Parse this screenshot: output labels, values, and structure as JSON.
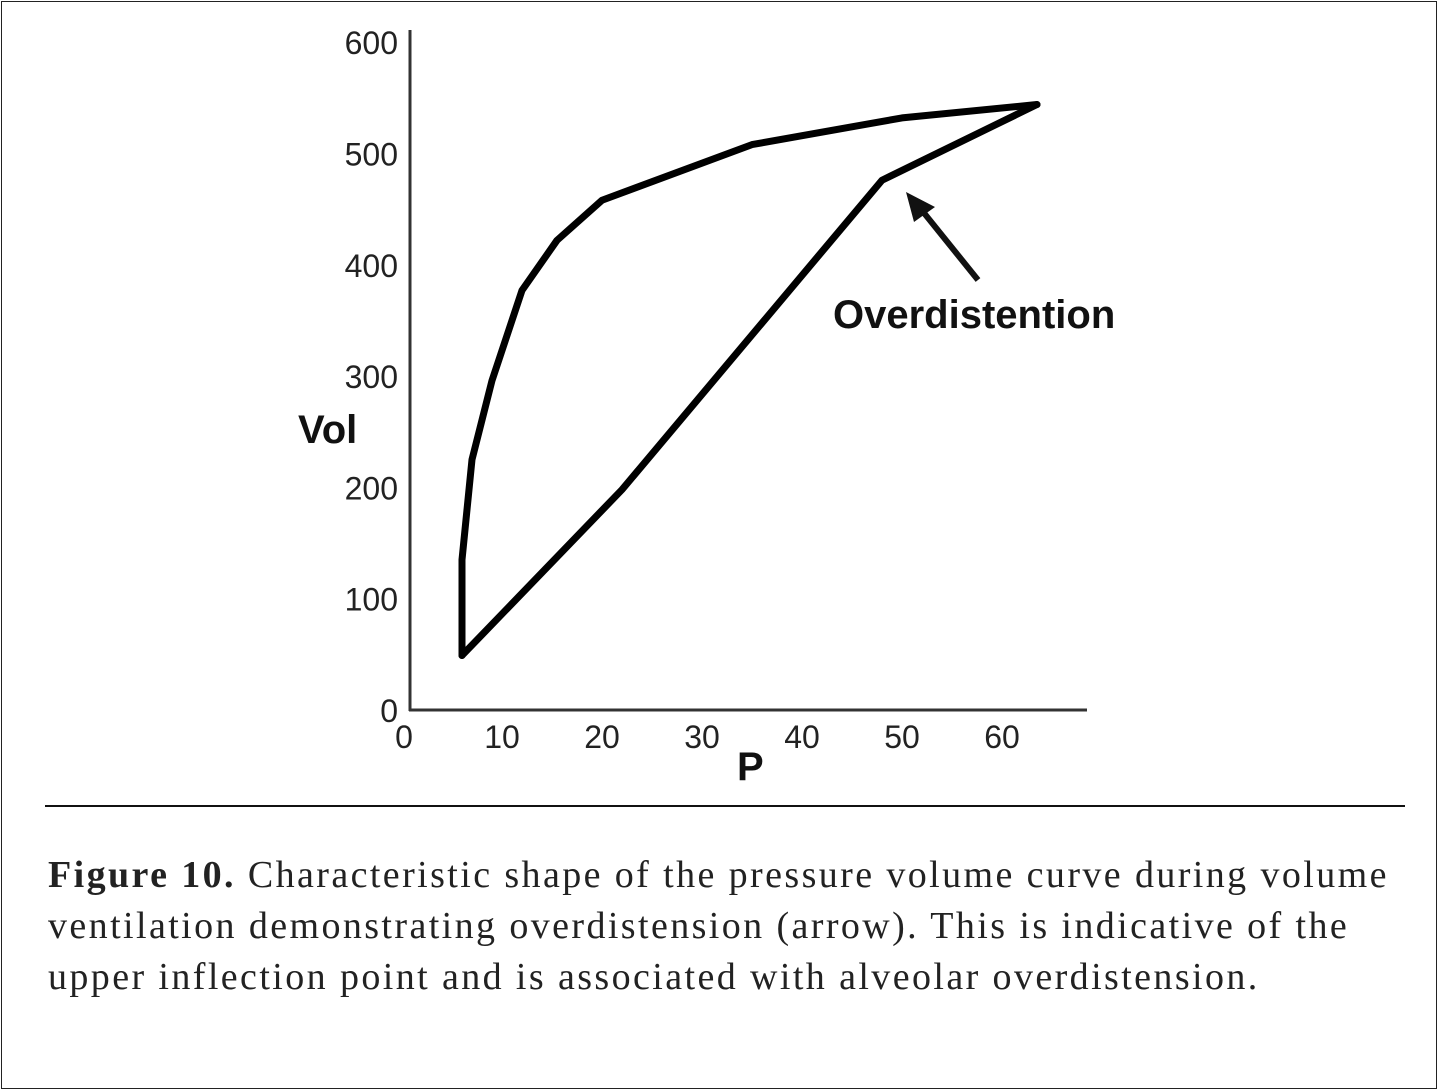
{
  "chart_data": {
    "type": "line",
    "xlabel": "P",
    "ylabel": "Vol",
    "xlim": [
      0,
      68
    ],
    "ylim": [
      0,
      600
    ],
    "xticks": [
      0,
      10,
      20,
      30,
      40,
      50,
      60
    ],
    "yticks": [
      0,
      100,
      200,
      300,
      400,
      500,
      600
    ],
    "grid": false,
    "series": [
      {
        "points": [
          [
            6,
            49
          ],
          [
            22,
            198
          ],
          [
            48,
            476
          ],
          [
            63.5,
            544
          ]
        ]
      },
      {
        "points": [
          [
            63.5,
            544
          ],
          [
            50,
            532
          ],
          [
            35,
            508
          ],
          [
            20,
            458
          ],
          [
            15.5,
            422
          ],
          [
            12,
            377
          ],
          [
            9,
            296
          ],
          [
            7,
            225
          ],
          [
            6,
            135
          ],
          [
            6,
            49
          ]
        ]
      }
    ],
    "annotations": [
      {
        "text": "Overdistention",
        "arrow_to": [
          49,
          460
        ]
      }
    ]
  },
  "caption": {
    "label": "Figure 10.",
    "text": " Characteristic shape of the pressure volume curve during volume ventilation demonstrating overdistension (arrow). This is indicative of the upper inflection point and is associated with alveolar overdistension."
  }
}
